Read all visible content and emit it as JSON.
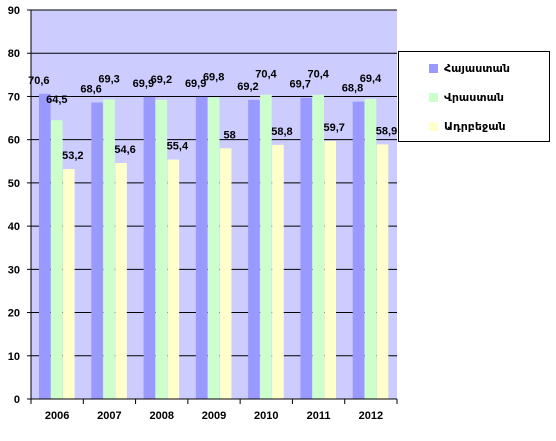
{
  "chart_data": {
    "type": "bar",
    "categories": [
      "2006",
      "2007",
      "2008",
      "2009",
      "2010",
      "2011",
      "2012"
    ],
    "series": [
      {
        "name": "Հայաստան",
        "color": "#9999ff",
        "values": [
          70.6,
          68.6,
          69.9,
          69.9,
          69.2,
          69.7,
          68.8
        ],
        "labels": [
          "70,6",
          "68,6",
          "69,9",
          "69,9",
          "69,2",
          "69,7",
          "68,8"
        ]
      },
      {
        "name": "Վրաստան",
        "color": "#ccffcc",
        "values": [
          64.5,
          69.3,
          69.2,
          69.8,
          70.4,
          70.4,
          69.4
        ],
        "labels": [
          "64,5",
          "69,3",
          "69,2",
          "69,8",
          "70,4",
          "70,4",
          "69,4"
        ]
      },
      {
        "name": "Ադրբեջան",
        "color": "#ffffcc",
        "values": [
          53.2,
          54.6,
          55.4,
          58,
          58.8,
          59.7,
          58.9
        ],
        "labels": [
          "53,2",
          "54,6",
          "55,4",
          "58",
          "58,8",
          "59,7",
          "58,9"
        ]
      }
    ],
    "ylim": [
      0,
      90
    ],
    "yticks": [
      "0",
      "10",
      "20",
      "30",
      "40",
      "50",
      "60",
      "70",
      "80",
      "90"
    ],
    "title": "",
    "xlabel": "",
    "ylabel": "",
    "grid": true,
    "legend_position": "right",
    "plot_background": "#ccccff"
  }
}
